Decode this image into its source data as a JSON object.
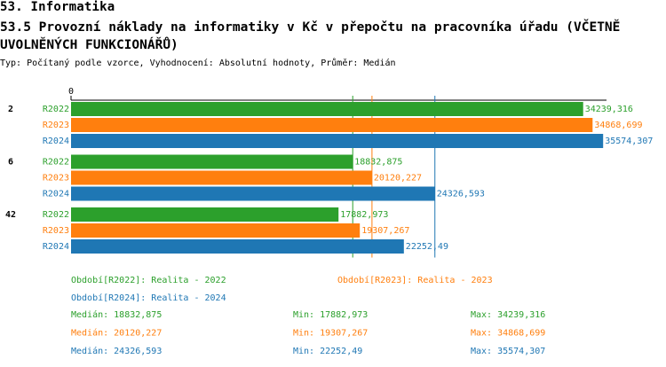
{
  "header": {
    "section": "53. Informatika",
    "subtitle": "53.5 Provozní náklady na informatiky v Kč v přepočtu na pracovníka úřadu (VČETNĚ UVOLNĚNÝCH FUNKCIONÁŘŮ)",
    "meta": "Typ: Počítaný podle vzorce, Vyhodnocení: Absolutní hodnoty, Průměr: Medián"
  },
  "chart_data": {
    "type": "bar",
    "orientation": "horizontal",
    "categories": [
      "2",
      "6",
      "42"
    ],
    "xlim": [
      0,
      35800
    ],
    "xticks": [
      0
    ],
    "series": [
      {
        "name": "R2022",
        "legend_label": "Období[R2022]: Realita - 2022",
        "color": "#2ca02c",
        "values": [
          34239.316,
          18832.875,
          17882.973
        ],
        "value_labels": [
          "34239,316",
          "18832,875",
          "17882,973"
        ],
        "stats": [
          {
            "label": "Medián:",
            "value": 18832.875,
            "value_label": "18832,875"
          },
          {
            "label": "Min:",
            "value": 17882.973,
            "value_label": "17882,973"
          },
          {
            "label": "Max:",
            "value": 34239.316,
            "value_label": "34239,316"
          }
        ]
      },
      {
        "name": "R2023",
        "legend_label": "Období[R2023]: Realita - 2023",
        "color": "#ff7f0e",
        "values": [
          34868.699,
          20120.227,
          19307.267
        ],
        "value_labels": [
          "34868,699",
          "20120,227",
          "19307,267"
        ],
        "stats": [
          {
            "label": "Medián:",
            "value": 20120.227,
            "value_label": "20120,227"
          },
          {
            "label": "Min:",
            "value": 19307.267,
            "value_label": "19307,267"
          },
          {
            "label": "Max:",
            "value": 34868.699,
            "value_label": "34868,699"
          }
        ]
      },
      {
        "name": "R2024",
        "legend_label": "Období[R2024]: Realita - 2024",
        "color": "#1f77b4",
        "values": [
          35574.307,
          24326.593,
          22252.49
        ],
        "value_labels": [
          "35574,307",
          "24326,593",
          "22252,49"
        ],
        "stats": [
          {
            "label": "Medián:",
            "value": 24326.593,
            "value_label": "24326,593"
          },
          {
            "label": "Min:",
            "value": 22252.49,
            "value_label": "22252,49"
          },
          {
            "label": "Max:",
            "value": 35574.307,
            "value_label": "35574,307"
          }
        ]
      }
    ]
  }
}
